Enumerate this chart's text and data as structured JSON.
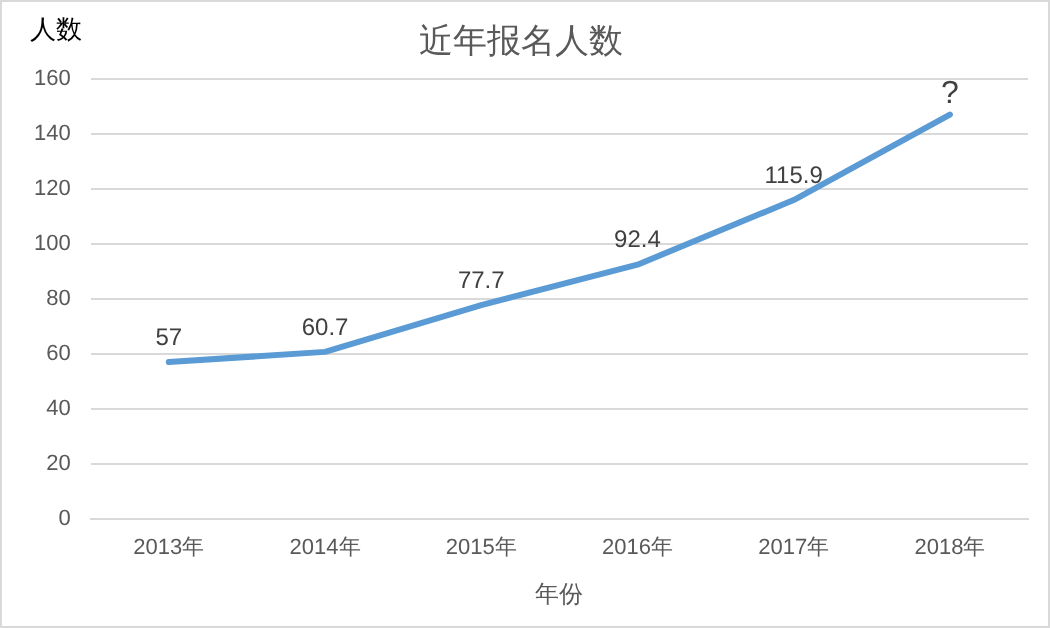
{
  "chart_data": {
    "type": "line",
    "title": "近年报名人数",
    "xlabel": "年份",
    "ylabel": "人数",
    "categories": [
      "2013年",
      "2014年",
      "2015年",
      "2016年",
      "2017年",
      "2018年"
    ],
    "series": [
      {
        "color": "#5b9bd5",
        "values": [
          57,
          60.7,
          77.7,
          92.4,
          115.9,
          147
        ],
        "value_labels": [
          "57",
          "60.7",
          "77.7",
          "92.4",
          "115.9",
          "?"
        ]
      }
    ],
    "ylim": [
      0,
      160
    ],
    "yticks": [
      0,
      20,
      40,
      60,
      80,
      100,
      120,
      140,
      160
    ],
    "grid": "y",
    "legend": false,
    "marker": "none",
    "line_style": "solid"
  }
}
